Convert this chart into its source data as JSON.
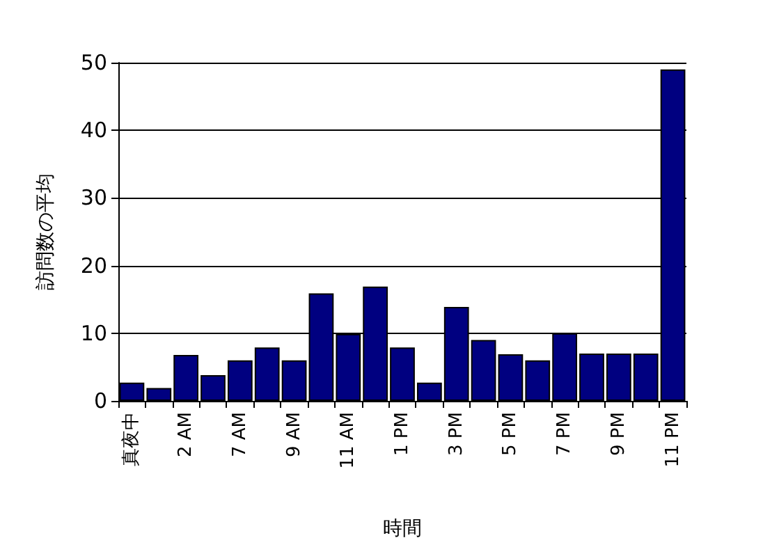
{
  "chart_data": {
    "type": "bar",
    "xlabel": "時間",
    "ylabel": "訪問数の平均",
    "categories": [
      "真夜中",
      null,
      "2 AM",
      null,
      "7 AM",
      null,
      "9 AM",
      null,
      "11 AM",
      null,
      "1 PM",
      null,
      "3 PM",
      null,
      "5 PM",
      null,
      "7 PM",
      null,
      "9 PM",
      null,
      "11 PM"
    ],
    "values": [
      2.7,
      1.9,
      6.8,
      3.8,
      6,
      7.9,
      6,
      15.9,
      9.9,
      16.9,
      7.9,
      2.7,
      13.9,
      9,
      6.9,
      6,
      10,
      7,
      7,
      7,
      49
    ],
    "color": "#000080",
    "ylim": [
      0,
      50
    ],
    "yticks": [
      0,
      10,
      20,
      30,
      40,
      50
    ],
    "grid": "y"
  }
}
